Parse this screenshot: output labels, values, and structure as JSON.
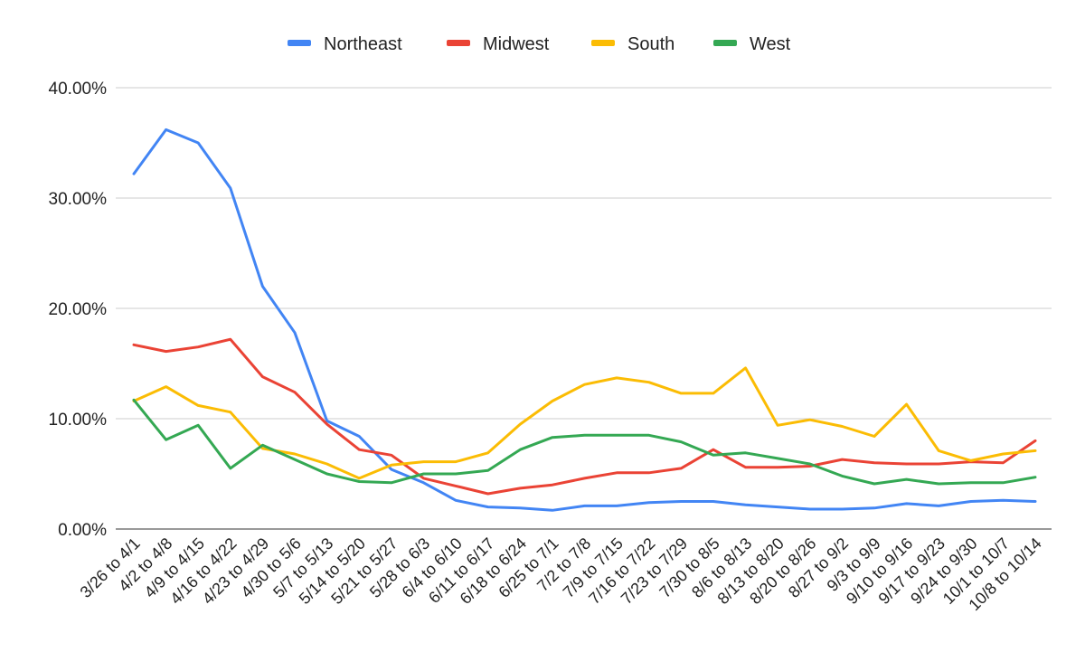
{
  "chart_data": {
    "type": "line",
    "title": "",
    "xlabel": "",
    "ylabel": "",
    "ylim": [
      0,
      40
    ],
    "y_tick_values": [
      0,
      10,
      20,
      30,
      40
    ],
    "y_tick_labels": [
      "0.00%",
      "10.00%",
      "20.00%",
      "30.00%",
      "40.00%"
    ],
    "grid": true,
    "legend_position": "top",
    "categories": [
      "3/26 to 4/1",
      "4/2 to 4/8",
      "4/9 to 4/15",
      "4/16 to 4/22",
      "4/23 to 4/29",
      "4/30 to 5/6",
      "5/7 to 5/13",
      "5/14 to 5/20",
      "5/21 to 5/27",
      "5/28 to 6/3",
      "6/4 to 6/10",
      "6/11 to 6/17",
      "6/18 to 6/24",
      "6/25 to 7/1",
      "7/2 to 7/8",
      "7/9 to 7/15",
      "7/16 to 7/22",
      "7/23 to 7/29",
      "7/30 to 8/5",
      "8/6 to 8/13",
      "8/13 to 8/20",
      "8/20 to 8/26",
      "8/27 to 9/2",
      "9/3 to 9/9",
      "9/10 to 9/16",
      "9/17 to 9/23",
      "9/24 to 9/30",
      "10/1 to 10/7",
      "10/8 to 10/14"
    ],
    "series": [
      {
        "name": "Northeast",
        "color": "#4285F4",
        "values": [
          32.2,
          36.2,
          35.0,
          30.9,
          22.0,
          17.8,
          9.8,
          8.4,
          5.4,
          4.2,
          2.6,
          2.0,
          1.9,
          1.7,
          2.1,
          2.1,
          2.4,
          2.5,
          2.5,
          2.2,
          2.0,
          1.8,
          1.8,
          1.9,
          2.3,
          2.1,
          2.5,
          2.6,
          2.5
        ]
      },
      {
        "name": "Midwest",
        "color": "#EA4335",
        "values": [
          16.7,
          16.1,
          16.5,
          17.2,
          13.8,
          12.4,
          9.5,
          7.2,
          6.7,
          4.6,
          3.9,
          3.2,
          3.7,
          4.0,
          4.6,
          5.1,
          5.1,
          5.5,
          7.2,
          5.6,
          5.6,
          5.7,
          6.3,
          6.0,
          5.9,
          5.9,
          6.1,
          6.0,
          8.0
        ]
      },
      {
        "name": "South",
        "color": "#FBBC04",
        "values": [
          11.6,
          12.9,
          11.2,
          10.6,
          7.3,
          6.8,
          5.9,
          4.6,
          5.8,
          6.1,
          6.1,
          6.9,
          9.5,
          11.6,
          13.1,
          13.7,
          13.3,
          12.3,
          12.3,
          14.6,
          9.4,
          9.9,
          9.3,
          8.4,
          11.3,
          7.1,
          6.2,
          6.8,
          7.1
        ]
      },
      {
        "name": "West",
        "color": "#34A853",
        "values": [
          11.7,
          8.1,
          9.4,
          5.5,
          7.6,
          6.3,
          5.0,
          4.3,
          4.2,
          5.0,
          5.0,
          5.3,
          7.2,
          8.3,
          8.5,
          8.5,
          8.5,
          7.9,
          6.7,
          6.9,
          6.4,
          5.9,
          4.8,
          4.1,
          4.5,
          4.1,
          4.2,
          4.2,
          4.7
        ]
      }
    ]
  }
}
